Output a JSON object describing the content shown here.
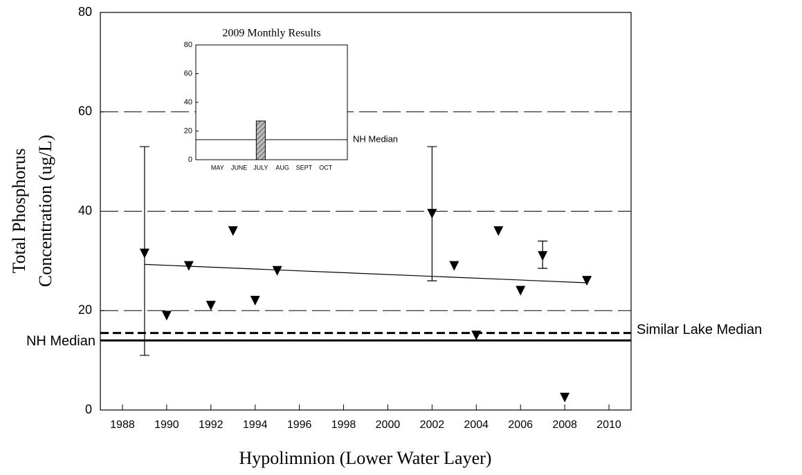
{
  "chart_data": [
    {
      "type": "scatter",
      "xlabel": "Hypolimnion (Lower Water Layer)",
      "ylabel": [
        "Total Phosphorus",
        "Concentration (ug/L)"
      ],
      "x": [
        1989,
        1990,
        1991,
        1992,
        1993,
        1994,
        1995,
        2002,
        2003,
        2004,
        2005,
        2006,
        2007,
        2008,
        2009
      ],
      "series": [
        {
          "color": "#000000",
          "values": [
            31.5,
            19,
            29,
            21,
            36,
            22,
            28,
            39.5,
            29,
            15,
            36,
            24,
            31,
            2.5,
            26
          ],
          "error_upper": [
            53,
            null,
            null,
            null,
            null,
            null,
            null,
            53,
            null,
            null,
            null,
            null,
            34,
            null,
            null
          ],
          "error_lower": [
            11,
            null,
            null,
            null,
            null,
            null,
            null,
            26,
            null,
            null,
            null,
            null,
            28.5,
            null,
            null
          ]
        }
      ],
      "trend_line": {
        "x": [
          1989,
          2009
        ],
        "values": [
          29.3,
          25.6
        ]
      },
      "reference_lines": [
        {
          "label": "NH Median",
          "value": 14,
          "style": "solid"
        },
        {
          "label": "Similar Lake Median",
          "value": 15.5,
          "style": "dashed"
        }
      ],
      "xlim": [
        1987,
        2011
      ],
      "xticks": [
        1988,
        1990,
        1992,
        1994,
        1996,
        1998,
        2000,
        2002,
        2004,
        2006,
        2008,
        2010
      ],
      "ylim": [
        0,
        80
      ],
      "yticks": [
        0,
        20,
        40,
        60,
        80
      ],
      "grid": true
    },
    {
      "type": "bar",
      "title": "2009 Monthly Results",
      "categories": [
        "MAY",
        "JUNE",
        "JULY",
        "AUG",
        "SEPT",
        "OCT"
      ],
      "values": [
        null,
        null,
        27,
        null,
        null,
        null
      ],
      "color": "#bbbbbb",
      "reference_lines": [
        {
          "label": "NH Median",
          "value": 14,
          "style": "solid"
        }
      ],
      "ylim": [
        0,
        80
      ],
      "yticks": [
        0,
        20,
        40,
        60,
        80
      ]
    }
  ]
}
